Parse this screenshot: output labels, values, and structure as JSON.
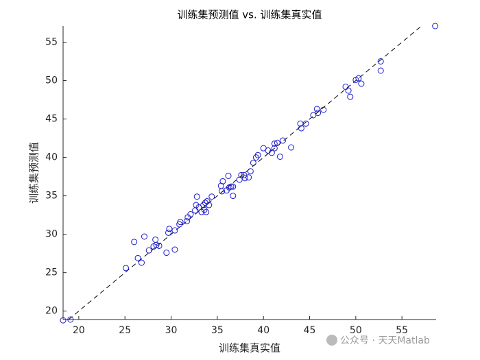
{
  "chart_data": {
    "type": "scatter",
    "title": "训练集预测值 vs. 训练集真实值",
    "x_label": "训练集真实值",
    "y_label": "训练集预测值",
    "watermark": "公众号 · 天天Matlab",
    "color": "#1a1acc",
    "identity_line": true,
    "xlim": [
      18.3,
      58.7
    ],
    "ylim": [
      18.9,
      57.1
    ],
    "xticks": [
      20,
      25,
      30,
      35,
      40,
      45,
      50,
      55
    ],
    "yticks": [
      20,
      25,
      30,
      35,
      40,
      45,
      50,
      55
    ],
    "x": [
      18.3,
      19.1,
      25.1,
      26.0,
      26.4,
      26.8,
      27.1,
      27.6,
      28.1,
      28.3,
      28.4,
      28.7,
      29.5,
      29.7,
      29.8,
      30.4,
      30.4,
      30.9,
      31.0,
      31.7,
      31.8,
      32.1,
      32.6,
      32.8,
      32.7,
      33.0,
      33.3,
      33.5,
      33.6,
      33.7,
      33.8,
      33.9,
      34.1,
      34.4,
      35.4,
      35.5,
      35.6,
      36.0,
      36.2,
      36.3,
      36.5,
      36.7,
      36.7,
      37.4,
      37.6,
      37.9,
      38.0,
      38.4,
      38.6,
      38.9,
      39.2,
      39.4,
      40.0,
      40.5,
      40.9,
      41.2,
      41.2,
      41.5,
      41.8,
      42.1,
      43.0,
      44.0,
      44.1,
      44.6,
      45.4,
      45.8,
      45.9,
      46.5,
      48.9,
      49.2,
      49.4,
      50.0,
      50.3,
      50.6,
      52.7,
      52.7,
      58.6
    ],
    "y": [
      18.8,
      18.9,
      25.6,
      29.0,
      26.9,
      26.3,
      29.7,
      27.9,
      28.4,
      29.3,
      28.6,
      28.5,
      27.6,
      30.2,
      30.7,
      28.0,
      30.5,
      31.3,
      31.6,
      31.7,
      32.2,
      32.6,
      33.1,
      34.9,
      33.8,
      33.5,
      32.9,
      33.8,
      33.2,
      34.1,
      32.9,
      34.3,
      33.8,
      34.9,
      36.3,
      35.6,
      36.9,
      35.7,
      37.6,
      36.1,
      36.2,
      35.0,
      36.2,
      37.1,
      37.7,
      37.7,
      37.3,
      37.4,
      38.2,
      39.3,
      40.0,
      40.3,
      41.2,
      40.9,
      40.6,
      41.8,
      41.2,
      41.9,
      40.1,
      42.2,
      41.3,
      44.4,
      43.8,
      44.4,
      45.5,
      46.3,
      45.8,
      46.2,
      49.2,
      48.7,
      47.9,
      50.1,
      50.3,
      49.6,
      52.5,
      51.3,
      57.1
    ]
  }
}
